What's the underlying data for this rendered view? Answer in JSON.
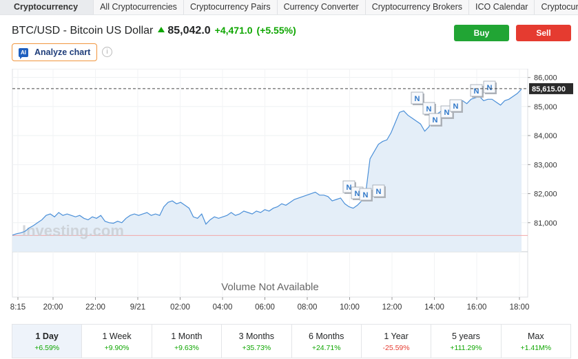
{
  "nav": {
    "tabs": [
      "Cryptocurrency",
      "All Cryptocurrencies",
      "Cryptocurrency Pairs",
      "Currency Converter",
      "Cryptocurrency Brokers",
      "ICO Calendar",
      "Cryptocurrency"
    ]
  },
  "header": {
    "instrument": "BTC/USD - Bitcoin US Dollar",
    "price": "85,042.0",
    "change": "+4,471.0",
    "change_pct": "(+5.55%)",
    "buy_label": "Buy",
    "sell_label": "Sell",
    "analyze_label": "Analyze chart",
    "ai_badge": "AI",
    "info_glyph": "i"
  },
  "colors": {
    "up": "#0ea600",
    "down": "#e53b30",
    "line": "#4a8fd8",
    "area": "#e4eef8",
    "news_marker": "#2f78c9"
  },
  "chart_data": {
    "type": "area",
    "y_ticks": [
      "86,000",
      "85,000",
      "84,000",
      "83,000",
      "82,000",
      "81,000"
    ],
    "ylim": [
      80000,
      86300
    ],
    "x_ticks": [
      "8:15",
      "20:00",
      "22:00",
      "9/21",
      "02:00",
      "04:00",
      "06:00",
      "08:00",
      "10:00",
      "12:00",
      "14:00",
      "16:00",
      "18:00"
    ],
    "current_label": "85,615.00",
    "current_value": 85615,
    "previous_close": 80560,
    "volume_note": "Volume Not Available",
    "watermark": "Investing.com",
    "news_marker_label": "N",
    "series": [
      {
        "values": [
          80570,
          80620,
          80650,
          80700,
          80820,
          80900,
          81000,
          81100,
          81250,
          81300,
          81200,
          81350,
          81250,
          81300,
          81250,
          81200,
          81250,
          81150,
          81100,
          81200,
          81150,
          81250,
          81050,
          81000,
          80980,
          81050,
          81000,
          81150,
          81250,
          81300,
          81250,
          81300,
          81350,
          81250,
          81300,
          81250,
          81550,
          81700,
          81750,
          81650,
          81700,
          81600,
          81500,
          81200,
          81150,
          81300,
          80950,
          81100,
          81200,
          81150,
          81200,
          81250,
          81350,
          81250,
          81300,
          81400,
          81350,
          81300,
          81400,
          81350,
          81450,
          81400,
          81500,
          81550,
          81650,
          81600,
          81700,
          81800,
          81850,
          81900,
          81950,
          82000,
          82050,
          81950,
          81950,
          81900,
          81750,
          81800,
          81850,
          81650,
          81550,
          81500,
          81600,
          81750,
          82050,
          83200,
          83450,
          83700,
          83800,
          83850,
          84100,
          84450,
          84800,
          84850,
          84700,
          84600,
          84500,
          84400,
          84150,
          84300,
          84600,
          84750,
          84850,
          84700,
          84800,
          85000,
          85150,
          85200,
          85100,
          85250,
          85300,
          85350,
          85200,
          85250,
          85250,
          85150,
          85050,
          85200,
          85250,
          85350,
          85450,
          85600
        ]
      }
    ],
    "news_markers": [
      {
        "index": 3,
        "value": 82150
      },
      {
        "index": 4,
        "value": 81850
      },
      {
        "index": 5,
        "value": 81900
      },
      {
        "index": 6,
        "value": 82000
      },
      {
        "index": 7,
        "value": 85300
      },
      {
        "index": 8,
        "value": 85050
      },
      {
        "index": 9,
        "value": 84750
      },
      {
        "index": 10,
        "value": 84850
      },
      {
        "index": 11,
        "value": 85000
      },
      {
        "index": 12,
        "value": 85450
      },
      {
        "index": 13,
        "value": 85500
      }
    ]
  },
  "periods": [
    {
      "label": "1 Day",
      "value": "+6.59%",
      "neg": false,
      "active": true
    },
    {
      "label": "1 Week",
      "value": "+9.90%",
      "neg": false,
      "active": false
    },
    {
      "label": "1 Month",
      "value": "+9.63%",
      "neg": false,
      "active": false
    },
    {
      "label": "3 Months",
      "value": "+35.73%",
      "neg": false,
      "active": false
    },
    {
      "label": "6 Months",
      "value": "+24.71%",
      "neg": false,
      "active": false
    },
    {
      "label": "1 Year",
      "value": "-25.59%",
      "neg": true,
      "active": false
    },
    {
      "label": "5 years",
      "value": "+111.29%",
      "neg": false,
      "active": false
    },
    {
      "label": "Max",
      "value": "+1.41M%",
      "neg": false,
      "active": false
    }
  ]
}
